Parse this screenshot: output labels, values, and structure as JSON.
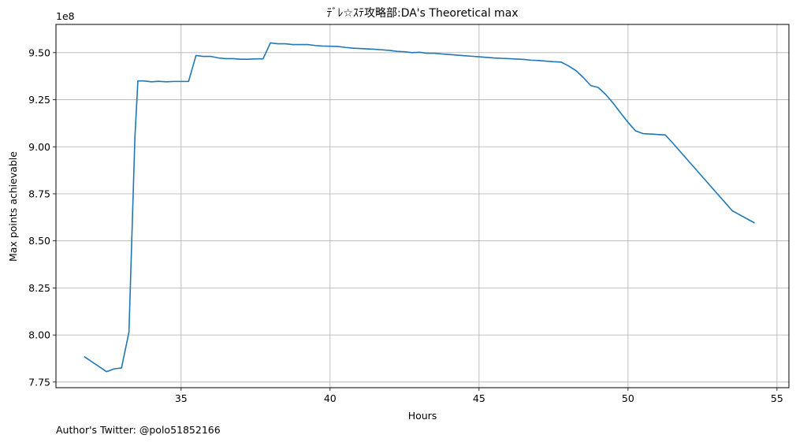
{
  "footer_text": "Author's Twitter: @polo51852166",
  "chart_data": {
    "type": "line",
    "title": "ﾃﾞﾚ☆ｽﾃ攻略部:DA's Theoretical max",
    "xlabel": "Hours",
    "ylabel": "Max points achievable",
    "y_offset_label": "1e8",
    "xlim": [
      30.8,
      55.4
    ],
    "ylim": [
      7.72,
      9.65
    ],
    "x_ticks": [
      35,
      40,
      45,
      50,
      55
    ],
    "y_ticks": [
      7.75,
      8.0,
      8.25,
      8.5,
      8.75,
      9.0,
      9.25,
      9.5
    ],
    "x_tick_labels": [
      "35",
      "40",
      "45",
      "50",
      "55"
    ],
    "y_tick_labels": [
      "7.75",
      "8.00",
      "8.25",
      "8.50",
      "8.75",
      "9.00",
      "9.25",
      "9.50"
    ],
    "grid": true,
    "line_color": "#1f77b4",
    "series": [
      {
        "x": [
          31.75,
          32.5,
          32.75,
          33.0,
          33.25,
          33.45,
          33.55,
          33.75,
          34.0,
          34.25,
          34.5,
          34.75,
          35.0,
          35.25,
          35.5,
          35.75,
          36.0,
          36.25,
          36.5,
          36.75,
          37.0,
          37.25,
          37.5,
          37.75,
          38.0,
          38.25,
          38.5,
          38.75,
          39.0,
          39.25,
          39.5,
          39.75,
          40.0,
          40.25,
          40.5,
          40.75,
          41.0,
          41.25,
          41.5,
          41.75,
          42.0,
          42.25,
          42.5,
          42.75,
          43.0,
          43.25,
          43.5,
          43.75,
          44.0,
          44.25,
          44.5,
          44.75,
          45.0,
          45.25,
          45.5,
          45.75,
          46.0,
          46.25,
          46.5,
          46.75,
          47.0,
          47.25,
          47.5,
          47.75,
          48.0,
          48.25,
          48.5,
          48.75,
          49.0,
          49.25,
          49.5,
          49.75,
          50.0,
          50.25,
          50.5,
          50.75,
          51.0,
          51.25,
          51.5,
          52.0,
          52.5,
          53.0,
          53.5,
          54.25
        ],
        "y": [
          7.885,
          7.805,
          7.82,
          7.825,
          8.015,
          9.05,
          9.35,
          9.35,
          9.345,
          9.348,
          9.345,
          9.347,
          9.347,
          9.347,
          9.485,
          9.48,
          9.48,
          9.472,
          9.468,
          9.468,
          9.465,
          9.465,
          9.467,
          9.467,
          9.552,
          9.547,
          9.547,
          9.543,
          9.543,
          9.543,
          9.538,
          9.535,
          9.534,
          9.533,
          9.528,
          9.524,
          9.522,
          9.52,
          9.518,
          9.515,
          9.512,
          9.507,
          9.505,
          9.5,
          9.502,
          9.497,
          9.497,
          9.493,
          9.49,
          9.487,
          9.484,
          9.481,
          9.478,
          9.475,
          9.472,
          9.47,
          9.468,
          9.466,
          9.464,
          9.46,
          9.458,
          9.455,
          9.452,
          9.45,
          9.43,
          9.405,
          9.368,
          9.325,
          9.315,
          9.278,
          9.232,
          9.18,
          9.13,
          9.085,
          9.07,
          9.068,
          9.065,
          9.063,
          9.02,
          8.93,
          8.84,
          8.75,
          8.66,
          8.595
        ]
      }
    ]
  }
}
